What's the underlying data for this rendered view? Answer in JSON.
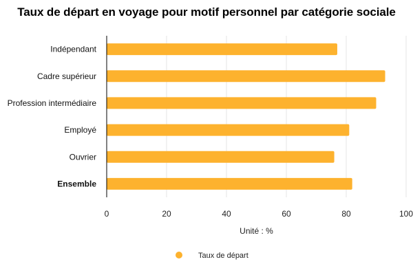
{
  "chart_data": {
    "type": "bar",
    "orientation": "horizontal",
    "title": "Taux de départ en voyage pour motif personnel par catégorie sociale",
    "xlabel": "Unité : %",
    "ylabel": "",
    "categories": [
      "Indépendant",
      "Cadre supérieur",
      "Profession intermédiaire",
      "Employé",
      "Ouvrier",
      "Ensemble"
    ],
    "bold_categories": [
      "Ensemble"
    ],
    "series": [
      {
        "name": "Taux de départ",
        "values": [
          77,
          93,
          90,
          81,
          76,
          82
        ],
        "color": "#FDB22E"
      }
    ],
    "xlim": [
      0,
      100
    ],
    "xticks": [
      0,
      20,
      40,
      60,
      80,
      100
    ],
    "grid": true,
    "legend": "bottom"
  }
}
